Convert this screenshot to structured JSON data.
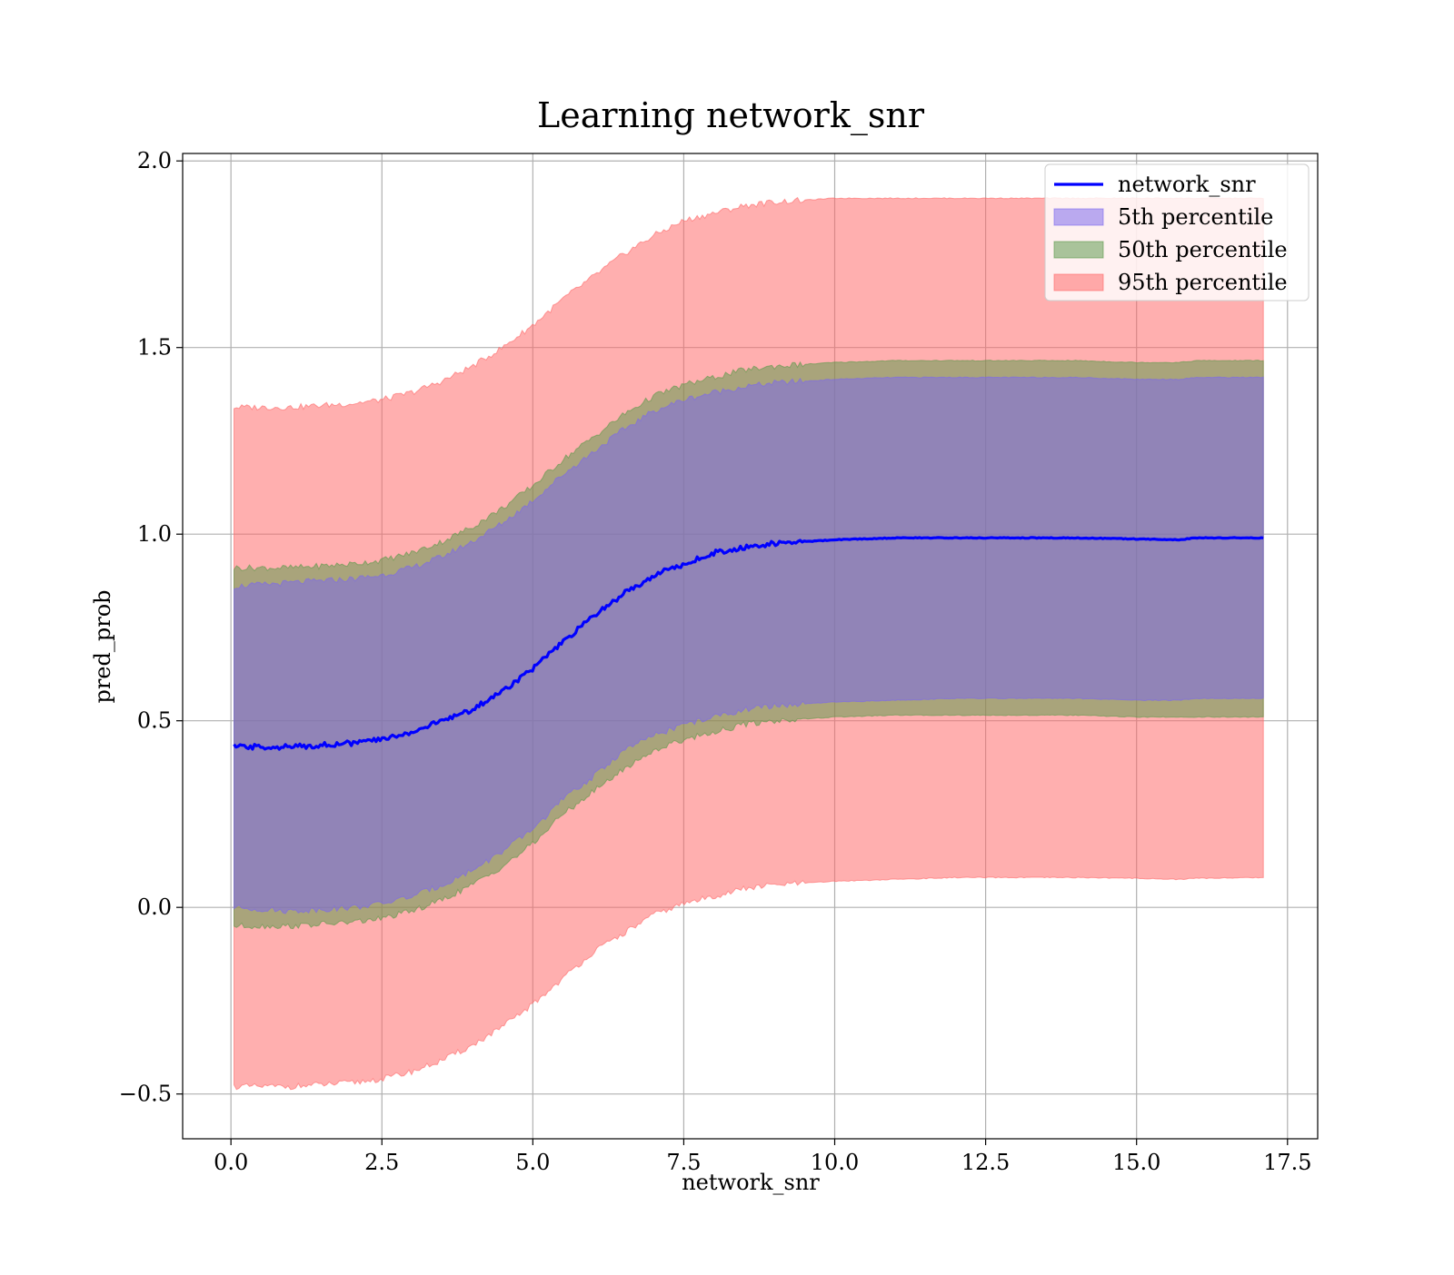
{
  "chart_data": {
    "type": "area",
    "title": "Learning network_snr",
    "xlabel": "network_snr",
    "ylabel": "pred_prob",
    "xlim": [
      -0.8,
      18.0
    ],
    "ylim": [
      -0.62,
      2.02
    ],
    "xticks": [
      0.0,
      2.5,
      5.0,
      7.5,
      10.0,
      12.5,
      15.0,
      17.5
    ],
    "xtick_labels": [
      "0.0",
      "2.5",
      "5.0",
      "7.5",
      "10.0",
      "12.5",
      "15.0",
      "17.5"
    ],
    "yticks": [
      -0.5,
      0.0,
      0.5,
      1.0,
      1.5,
      2.0
    ],
    "ytick_labels": [
      "−0.5",
      "0.0",
      "0.5",
      "1.0",
      "1.5",
      "2.0"
    ],
    "grid": true,
    "legend_position": "top-right",
    "x": [
      0.05,
      1.0,
      2.0,
      2.5,
      3.0,
      3.5,
      4.0,
      4.5,
      5.0,
      5.5,
      6.0,
      6.5,
      7.0,
      7.5,
      8.0,
      8.5,
      9.0,
      9.5,
      10.0,
      11.0,
      12.0,
      13.0,
      14.0,
      15.0,
      15.7,
      16.0,
      17.1
    ],
    "series": [
      {
        "name": "network_snr",
        "kind": "line",
        "color": "#0000ff",
        "values": [
          0.43,
          0.43,
          0.44,
          0.45,
          0.47,
          0.5,
          0.53,
          0.58,
          0.64,
          0.71,
          0.78,
          0.84,
          0.89,
          0.92,
          0.95,
          0.965,
          0.975,
          0.98,
          0.985,
          0.99,
          0.99,
          0.99,
          0.99,
          0.987,
          0.985,
          0.99,
          0.99
        ]
      },
      {
        "name": "5th percentile",
        "kind": "band",
        "color": "#7b68ee",
        "lower": [
          0.0,
          -0.01,
          0.0,
          0.01,
          0.03,
          0.06,
          0.1,
          0.15,
          0.21,
          0.29,
          0.35,
          0.42,
          0.46,
          0.49,
          0.51,
          0.53,
          0.54,
          0.545,
          0.55,
          0.555,
          0.56,
          0.56,
          0.56,
          0.555,
          0.555,
          0.56,
          0.56
        ],
        "upper": [
          0.86,
          0.87,
          0.88,
          0.89,
          0.91,
          0.94,
          0.98,
          1.03,
          1.09,
          1.16,
          1.22,
          1.28,
          1.33,
          1.36,
          1.38,
          1.395,
          1.405,
          1.41,
          1.415,
          1.42,
          1.42,
          1.42,
          1.42,
          1.415,
          1.415,
          1.42,
          1.42
        ]
      },
      {
        "name": "50th percentile",
        "kind": "band",
        "color": "#5a9a4a",
        "lower": [
          -0.05,
          -0.05,
          -0.04,
          -0.03,
          -0.01,
          0.02,
          0.06,
          0.11,
          0.17,
          0.25,
          0.31,
          0.37,
          0.42,
          0.45,
          0.47,
          0.49,
          0.5,
          0.505,
          0.51,
          0.515,
          0.515,
          0.515,
          0.515,
          0.51,
          0.51,
          0.51,
          0.51
        ],
        "upper": [
          0.91,
          0.91,
          0.92,
          0.93,
          0.95,
          0.98,
          1.02,
          1.07,
          1.13,
          1.2,
          1.26,
          1.32,
          1.37,
          1.4,
          1.42,
          1.44,
          1.45,
          1.455,
          1.46,
          1.465,
          1.465,
          1.465,
          1.465,
          1.46,
          1.46,
          1.465,
          1.465
        ]
      },
      {
        "name": "95th percentile",
        "kind": "band",
        "color": "#ff6666",
        "lower": [
          -0.48,
          -0.48,
          -0.47,
          -0.46,
          -0.44,
          -0.41,
          -0.37,
          -0.32,
          -0.26,
          -0.19,
          -0.12,
          -0.07,
          -0.02,
          0.01,
          0.03,
          0.05,
          0.06,
          0.065,
          0.07,
          0.075,
          0.08,
          0.08,
          0.08,
          0.078,
          0.075,
          0.078,
          0.08
        ],
        "upper": [
          1.34,
          1.34,
          1.35,
          1.36,
          1.38,
          1.41,
          1.45,
          1.5,
          1.56,
          1.63,
          1.69,
          1.75,
          1.8,
          1.84,
          1.86,
          1.88,
          1.89,
          1.895,
          1.9,
          1.9,
          1.9,
          1.9,
          1.9,
          1.9,
          1.9,
          1.9,
          1.9
        ]
      }
    ]
  }
}
